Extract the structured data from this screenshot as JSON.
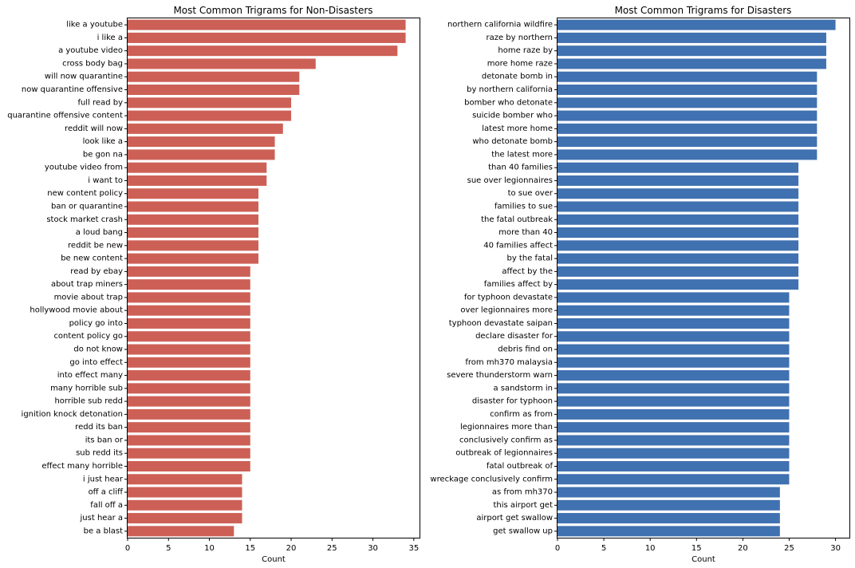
{
  "chart_data": [
    {
      "type": "bar",
      "orientation": "horizontal",
      "title": "Most Common Trigrams for Non-Disasters",
      "xlabel": "Count",
      "ylabel": "",
      "xlim": [
        0,
        35.7
      ],
      "xticks": [
        0,
        5,
        10,
        15,
        20,
        25,
        30,
        35
      ],
      "color": "#cd6056",
      "grid": false,
      "categories": [
        "like a youtube",
        "i like a",
        "a youtube video",
        "cross body bag",
        "will now quarantine",
        "now quarantine offensive",
        "full read by",
        "quarantine offensive content",
        "reddit will now",
        "look like a",
        "be gon na",
        "youtube video from",
        "i want to",
        "new content policy",
        "ban or quarantine",
        "stock market crash",
        "a loud bang",
        "reddit be new",
        "be new content",
        "read by ebay",
        "about trap miners",
        "movie about trap",
        "hollywood movie about",
        "policy go into",
        "content policy go",
        "do not know",
        "go into effect",
        "into effect many",
        "many horrible sub",
        "horrible sub redd",
        "ignition knock detonation",
        "redd its ban",
        "its ban or",
        "sub redd its",
        "effect many horrible",
        "i just hear",
        "off a cliff",
        "fall off a",
        "just hear a",
        "be a blast"
      ],
      "values": [
        34,
        34,
        33,
        23,
        21,
        21,
        20,
        20,
        19,
        18,
        18,
        17,
        17,
        16,
        16,
        16,
        16,
        16,
        16,
        15,
        15,
        15,
        15,
        15,
        15,
        15,
        15,
        15,
        15,
        15,
        15,
        15,
        15,
        15,
        15,
        14,
        14,
        14,
        14,
        13
      ]
    },
    {
      "type": "bar",
      "orientation": "horizontal",
      "title": "Most Common Trigrams for Disasters",
      "xlabel": "Count",
      "ylabel": "",
      "xlim": [
        0,
        31.5
      ],
      "xticks": [
        0,
        5,
        10,
        15,
        20,
        25,
        30
      ],
      "color": "#4071b0",
      "grid": false,
      "categories": [
        "northern california wildfire",
        "raze by northern",
        "home raze by",
        "more home raze",
        "detonate bomb in",
        "by northern california",
        "bomber who detonate",
        "suicide bomber who",
        "latest more home",
        "who detonate bomb",
        "the latest more",
        "than 40 families",
        "sue over legionnaires",
        "to sue over",
        "families to sue",
        "the fatal outbreak",
        "more than 40",
        "40 families affect",
        "by the fatal",
        "affect by the",
        "families affect by",
        "for typhoon devastate",
        "over legionnaires more",
        "typhoon devastate saipan",
        "declare disaster for",
        "debris find on",
        "from mh370 malaysia",
        "severe thunderstorm warn",
        "a sandstorm in",
        "disaster for typhoon",
        "confirm as from",
        "legionnaires more than",
        "conclusively confirm as",
        "outbreak of legionnaires",
        "fatal outbreak of",
        "wreckage conclusively confirm",
        "as from mh370",
        "this airport get",
        "airport get swallow",
        "get swallow up"
      ],
      "values": [
        30,
        29,
        29,
        29,
        28,
        28,
        28,
        28,
        28,
        28,
        28,
        26,
        26,
        26,
        26,
        26,
        26,
        26,
        26,
        26,
        26,
        25,
        25,
        25,
        25,
        25,
        25,
        25,
        25,
        25,
        25,
        25,
        25,
        25,
        25,
        25,
        24,
        24,
        24,
        24
      ]
    }
  ]
}
